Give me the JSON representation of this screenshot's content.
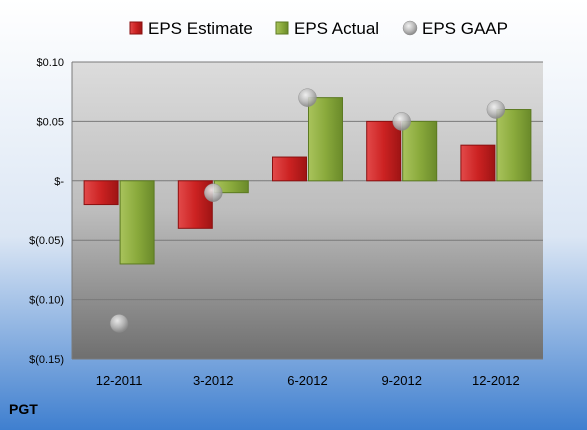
{
  "colors": {
    "estimate": "#cc2a2a",
    "actual": "#8aaa3c",
    "gaap": "#b8b8b8"
  },
  "chart_data": {
    "type": "bar",
    "title": "",
    "xlabel": "",
    "ylabel": "",
    "footer_label": "PGT",
    "categories": [
      "12-2011",
      "3-2012",
      "6-2012",
      "9-2012",
      "12-2012"
    ],
    "series": [
      {
        "name": "EPS Estimate",
        "kind": "bar",
        "values": [
          -0.02,
          -0.04,
          0.02,
          0.05,
          0.03
        ]
      },
      {
        "name": "EPS Actual",
        "kind": "bar",
        "values": [
          -0.07,
          -0.01,
          0.07,
          0.05,
          0.06
        ]
      },
      {
        "name": "EPS GAAP",
        "kind": "marker",
        "values": [
          -0.12,
          -0.01,
          0.07,
          0.05,
          0.06
        ]
      }
    ],
    "ylim": [
      -0.15,
      0.1
    ],
    "yticks": [
      0.1,
      0.05,
      0,
      -0.05,
      -0.1,
      -0.15
    ],
    "ytick_labels": [
      "$0.10",
      "$0.05",
      "$-",
      "$(0.05)",
      "$(0.10)",
      "$(0.15)"
    ],
    "grid": true,
    "legend_position": "top"
  }
}
